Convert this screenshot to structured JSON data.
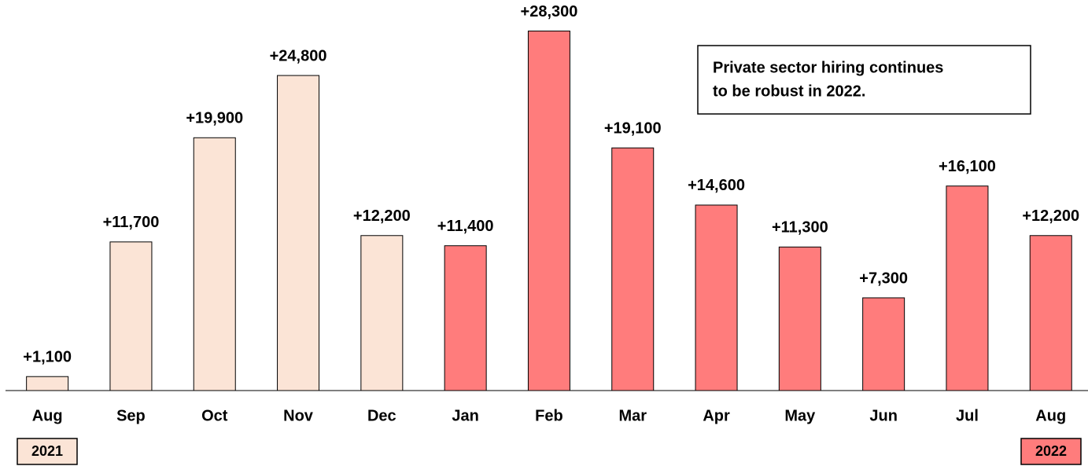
{
  "chart_data": {
    "type": "bar",
    "categories": [
      "Aug",
      "Sep",
      "Oct",
      "Nov",
      "Dec",
      "Jan",
      "Feb",
      "Mar",
      "Apr",
      "May",
      "Jun",
      "Jul",
      "Aug"
    ],
    "values": [
      1100,
      11700,
      19900,
      24800,
      12200,
      11400,
      28300,
      19100,
      14600,
      11300,
      7300,
      16100,
      12200
    ],
    "value_labels": [
      "+1,100",
      "+11,700",
      "+19,900",
      "+24,800",
      "+12,200",
      "+11,400",
      "+28,300",
      "+19,100",
      "+14,600",
      "+11,300",
      "+7,300",
      "+16,100",
      "+12,200"
    ],
    "colors": [
      "#fbe4d6",
      "#fbe4d6",
      "#fbe4d6",
      "#fbe4d6",
      "#fbe4d6",
      "#ff7c7c",
      "#ff7c7c",
      "#ff7c7c",
      "#ff7c7c",
      "#ff7c7c",
      "#ff7c7c",
      "#ff7c7c",
      "#ff7c7c"
    ],
    "ylim": [
      0,
      30000
    ],
    "annotation": [
      "Private sector hiring continues",
      "to be robust in 2022."
    ],
    "year_labels": [
      "2021",
      "2022"
    ],
    "year_colors": [
      "#fbe4d6",
      "#ff7c7c"
    ]
  }
}
